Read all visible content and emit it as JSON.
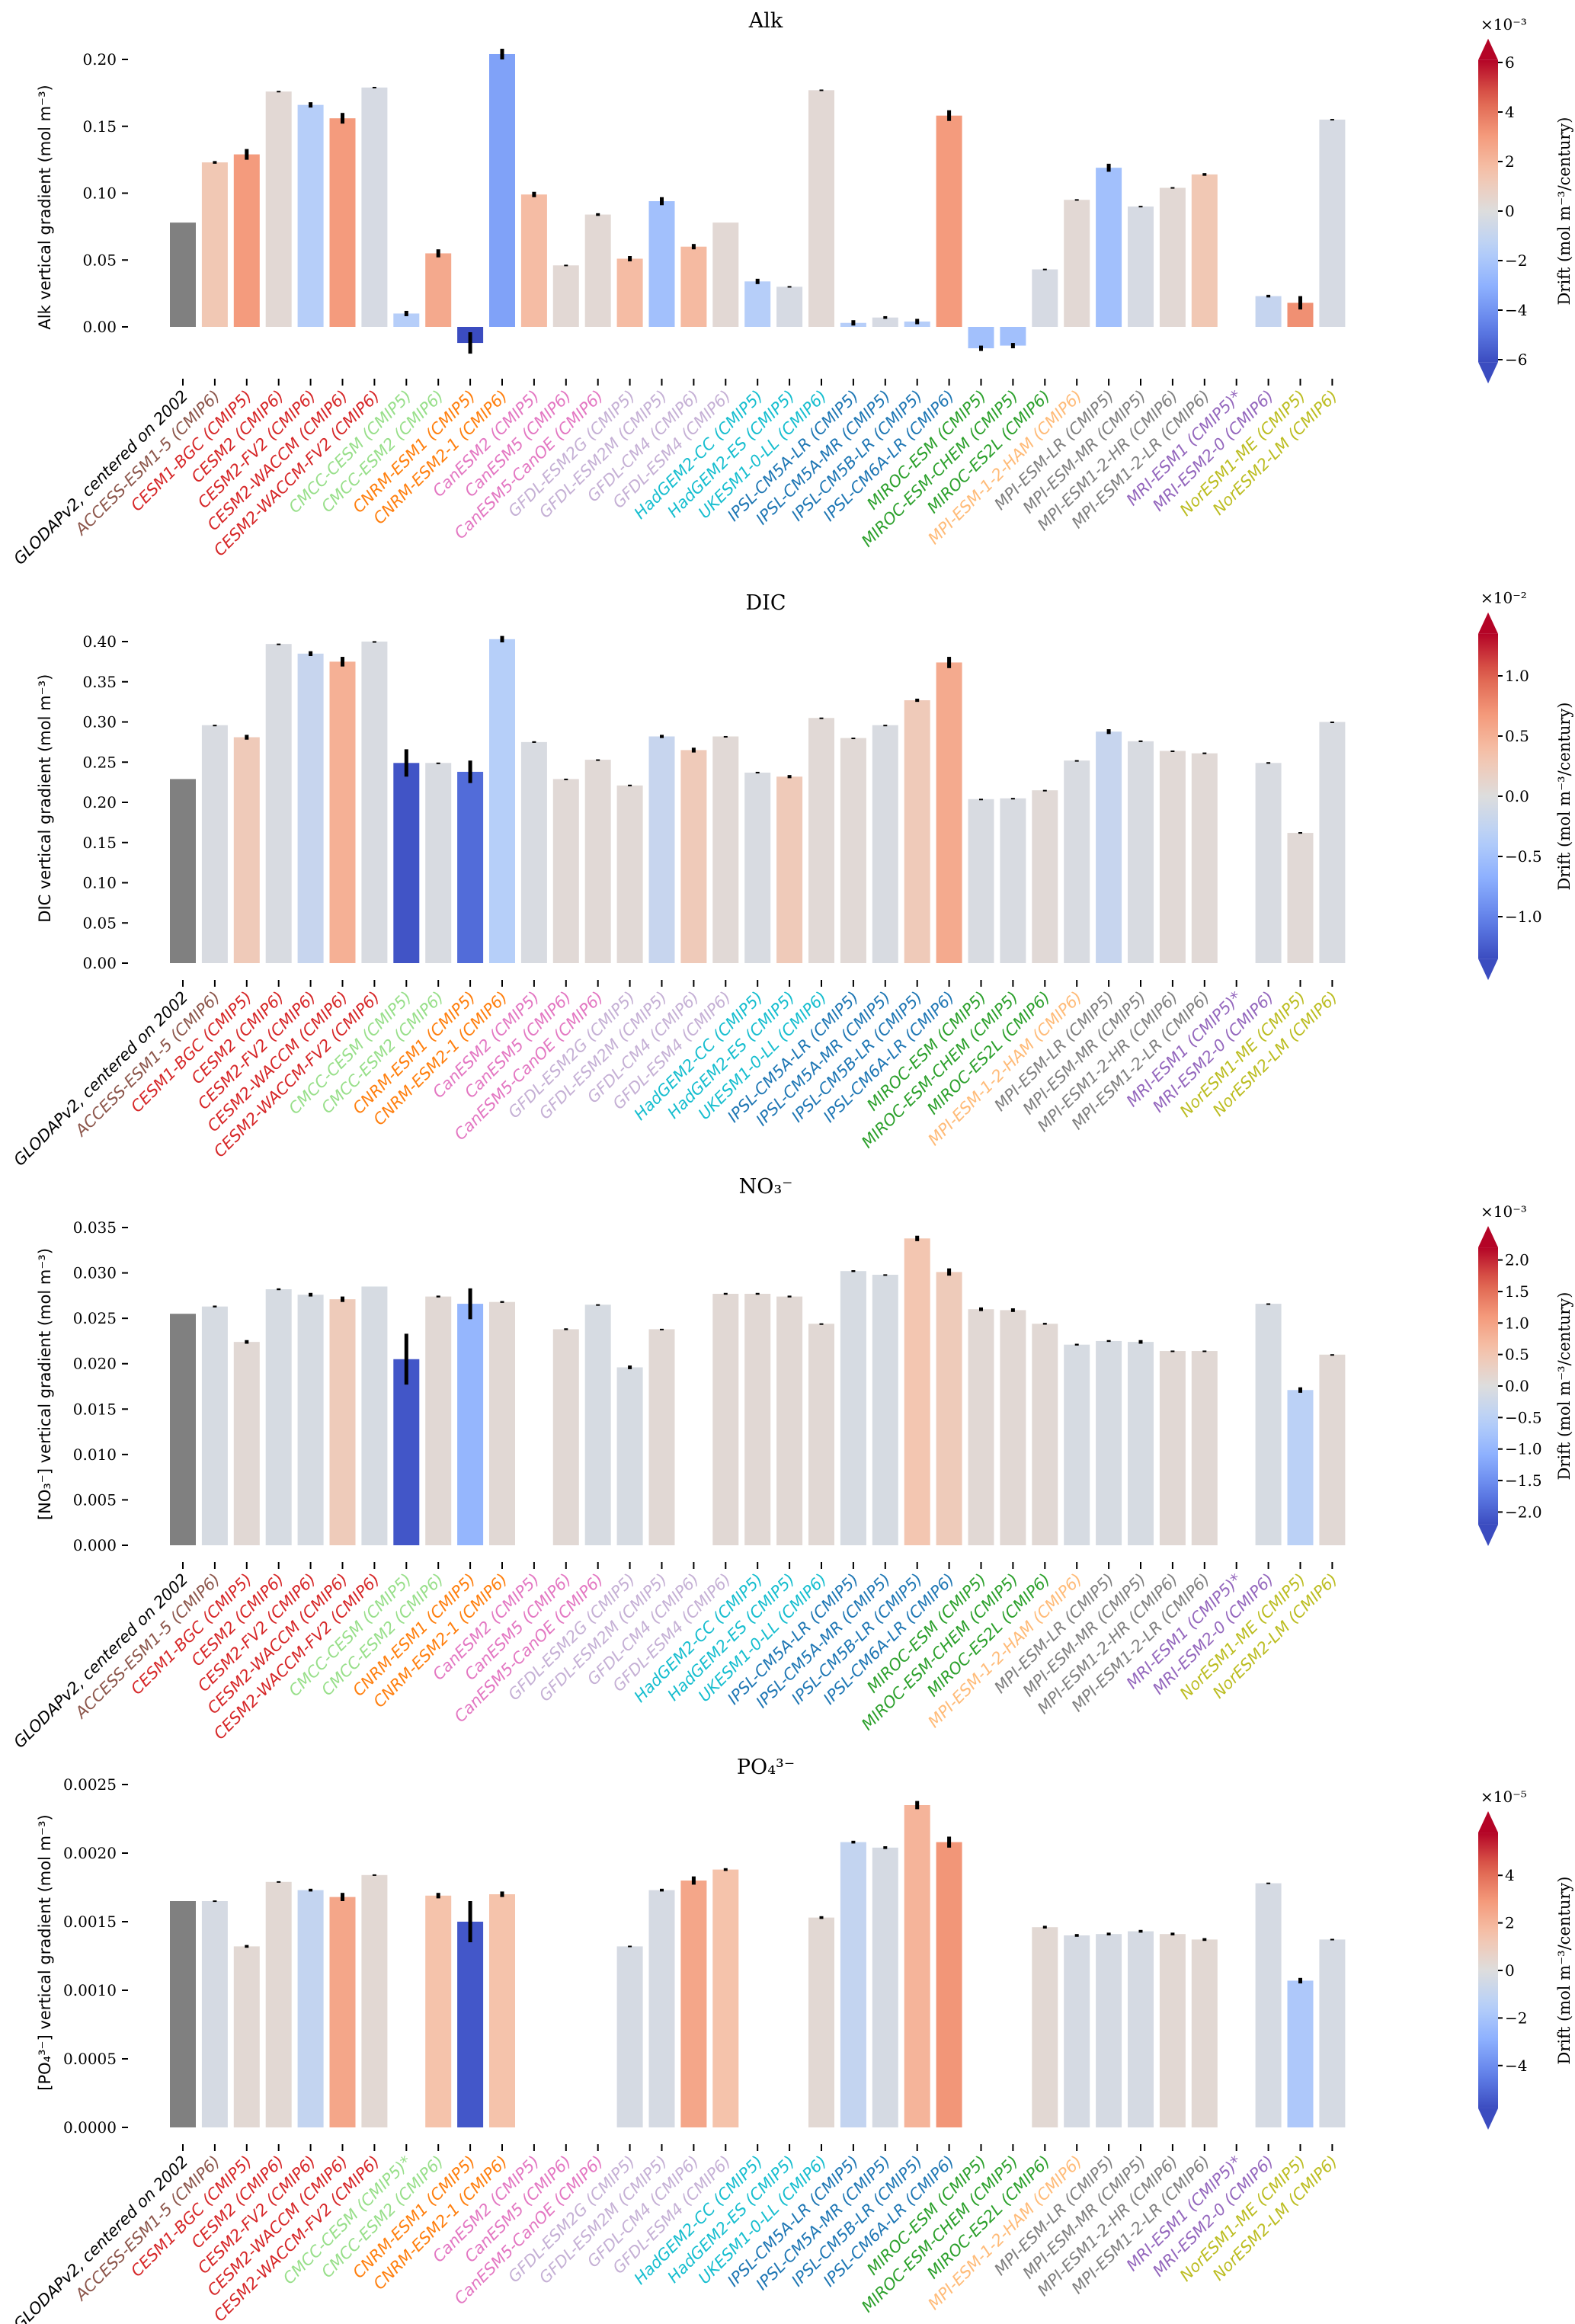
{
  "label_colors": [
    "#000000",
    "#8c564b",
    "#d62728",
    "#d62728",
    "#d62728",
    "#d62728",
    "#d62728",
    "#98df8a",
    "#98df8a",
    "#ff7f0e",
    "#ff7f0e",
    "#e377c2",
    "#e377c2",
    "#e377c2",
    "#c5b0d5",
    "#c5b0d5",
    "#c5b0d5",
    "#c5b0d5",
    "#17becf",
    "#17becf",
    "#17becf",
    "#1f77b4",
    "#1f77b4",
    "#1f77b4",
    "#1f77b4",
    "#2ca02c",
    "#2ca02c",
    "#2ca02c",
    "#ffbb78",
    "#7f7f7f",
    "#7f7f7f",
    "#7f7f7f",
    "#7f7f7f",
    "#9467bd",
    "#9467bd",
    "#bcbd22",
    "#bcbd22"
  ],
  "observation_color": "#808080",
  "colormap": "coolwarm",
  "chart_data": [
    {
      "type": "bar",
      "title": "Alk",
      "ylabel": "Alk vertical gradient (mol m⁻³)",
      "ylim": [
        -0.031,
        0.21
      ],
      "yticks": [
        "0.00",
        "0.05",
        "0.10",
        "0.15",
        "0.20"
      ],
      "ytick_values": [
        0,
        0.05,
        0.1,
        0.15,
        0.2
      ],
      "categories": [
        "GLODAPv2, centered on 2002",
        "ACCESS-ESM1-5 (CMIP6)",
        "CESM1-BGC (CMIP5)",
        "CESM2 (CMIP6)",
        "CESM2-FV2 (CMIP6)",
        "CESM2-WACCM (CMIP6)",
        "CESM2-WACCM-FV2 (CMIP6)",
        "CMCC-CESM (CMIP5)",
        "CMCC-ESM2 (CMIP6)",
        "CNRM-ESM1 (CMIP5)",
        "CNRM-ESM2-1 (CMIP6)",
        "CanESM2 (CMIP5)",
        "CanESM5 (CMIP6)",
        "CanESM5-CanOE (CMIP6)",
        "GFDL-ESM2G (CMIP5)",
        "GFDL-ESM2M (CMIP5)",
        "GFDL-CM4 (CMIP6)",
        "GFDL-ESM4 (CMIP6)",
        "HadGEM2-CC (CMIP5)",
        "HadGEM2-ES (CMIP5)",
        "UKESM1-0-LL (CMIP6)",
        "IPSL-CM5A-LR (CMIP5)",
        "IPSL-CM5A-MR (CMIP5)",
        "IPSL-CM5B-LR (CMIP5)",
        "IPSL-CM6A-LR (CMIP6)",
        "MIROC-ESM (CMIP5)",
        "MIROC-ESM-CHEM (CMIP5)",
        "MIROC-ES2L (CMIP6)",
        "MPI-ESM-1-2-HAM (CMIP6)",
        "MPI-ESM-LR (CMIP5)",
        "MPI-ESM-MR (CMIP5)",
        "MPI-ESM1-2-HR (CMIP6)",
        "MPI-ESM1-2-LR (CMIP6)",
        "MRI-ESM1 (CMIP5)*",
        "MRI-ESM2-0 (CMIP6)",
        "NorESM1-ME (CMIP5)",
        "NorESM2-LM (CMIP6)"
      ],
      "values": [
        0.078,
        0.123,
        0.129,
        0.176,
        0.166,
        0.156,
        0.179,
        0.01,
        0.055,
        -0.012,
        0.204,
        0.099,
        0.046,
        0.084,
        0.051,
        0.094,
        0.06,
        0.078,
        0.034,
        0.03,
        0.177,
        0.003,
        0.007,
        0.004,
        0.158,
        -0.016,
        -0.014,
        0.043,
        0.095,
        0.119,
        0.09,
        0.104,
        0.114,
        null,
        0.023,
        0.018,
        0.155
      ],
      "yerr": [
        0,
        0.001,
        0.004,
        0.0005,
        0.002,
        0.004,
        0.0005,
        0.002,
        0.003,
        0.008,
        0.004,
        0.002,
        0.0005,
        0.001,
        0.002,
        0.003,
        0.002,
        0,
        0.002,
        0.0005,
        0.0005,
        0.002,
        0.001,
        0.002,
        0.004,
        0.002,
        0.002,
        0.0005,
        0.0005,
        0.003,
        0.0005,
        0.0005,
        0.001,
        null,
        0.001,
        0.005,
        0.0005
      ],
      "drift": [
        null,
        1.3,
        3.0,
        0.3,
        -1.6,
        3.0,
        -0.3,
        -1.6,
        2.5,
        -6.5,
        -3.5,
        1.8,
        0.3,
        0.3,
        1.8,
        -2.3,
        1.9,
        0.3,
        -1.6,
        -0.3,
        0.3,
        -1.6,
        -0.3,
        -1.6,
        3.0,
        -2.3,
        -2.3,
        -0.3,
        0.3,
        -2.3,
        -0.3,
        0.3,
        1.3,
        null,
        -1.0,
        3.3,
        -0.3
      ],
      "colorbar": {
        "label": "Drift (mol m⁻³/century)",
        "multiplier": "×10⁻³",
        "vmin": -6.1,
        "vmax": 6.1,
        "ticks": [
          "−6",
          "−4",
          "−2",
          "0",
          "2",
          "4",
          "6"
        ],
        "tick_values": [
          -6,
          -4,
          -2,
          0,
          2,
          4,
          6
        ]
      }
    },
    {
      "type": "bar",
      "title": "DIC",
      "ylabel": "DIC vertical gradient (mol m⁻³)",
      "ylim": [
        0,
        0.41
      ],
      "yticks": [
        "0.00",
        "0.05",
        "0.10",
        "0.15",
        "0.20",
        "0.25",
        "0.30",
        "0.35",
        "0.40"
      ],
      "ytick_values": [
        0,
        0.05,
        0.1,
        0.15,
        0.2,
        0.25,
        0.3,
        0.35,
        0.4
      ],
      "categories": [
        "GLODAPv2, centered on 2002",
        "ACCESS-ESM1-5 (CMIP6)",
        "CESM1-BGC (CMIP5)",
        "CESM2 (CMIP6)",
        "CESM2-FV2 (CMIP6)",
        "CESM2-WACCM (CMIP6)",
        "CESM2-WACCM-FV2 (CMIP6)",
        "CMCC-CESM (CMIP5)",
        "CMCC-ESM2 (CMIP6)",
        "CNRM-ESM1 (CMIP5)",
        "CNRM-ESM2-1 (CMIP6)",
        "CanESM2 (CMIP5)",
        "CanESM5 (CMIP6)",
        "CanESM5-CanOE (CMIP6)",
        "GFDL-ESM2G (CMIP5)",
        "GFDL-ESM2M (CMIP5)",
        "GFDL-CM4 (CMIP6)",
        "GFDL-ESM4 (CMIP6)",
        "HadGEM2-CC (CMIP5)",
        "HadGEM2-ES (CMIP5)",
        "UKESM1-0-LL (CMIP6)",
        "IPSL-CM5A-LR (CMIP5)",
        "IPSL-CM5A-MR (CMIP5)",
        "IPSL-CM5B-LR (CMIP5)",
        "IPSL-CM6A-LR (CMIP6)",
        "MIROC-ESM (CMIP5)",
        "MIROC-ESM-CHEM (CMIP5)",
        "MIROC-ES2L (CMIP6)",
        "MPI-ESM-1-2-HAM (CMIP6)",
        "MPI-ESM-LR (CMIP5)",
        "MPI-ESM-MR (CMIP5)",
        "MPI-ESM1-2-HR (CMIP6)",
        "MPI-ESM1-2-LR (CMIP6)",
        "MRI-ESM1 (CMIP5)*",
        "MRI-ESM2-0 (CMIP6)",
        "NorESM1-ME (CMIP5)",
        "NorESM2-LM (CMIP6)"
      ],
      "values": [
        0.229,
        0.296,
        0.281,
        0.397,
        0.385,
        0.375,
        0.4,
        0.249,
        0.249,
        0.238,
        0.403,
        0.275,
        0.229,
        0.253,
        0.221,
        0.282,
        0.265,
        0.282,
        0.237,
        0.232,
        0.305,
        0.28,
        0.296,
        0.327,
        0.374,
        0.204,
        0.205,
        0.215,
        0.252,
        0.288,
        0.276,
        0.264,
        0.261,
        null,
        0.249,
        0.162,
        0.3
      ],
      "yerr": [
        0,
        0.0005,
        0.003,
        0.0005,
        0.003,
        0.006,
        0.0005,
        0.017,
        0.0005,
        0.014,
        0.004,
        0.001,
        0.0005,
        0.0005,
        0.001,
        0.002,
        0.003,
        0.0005,
        0.001,
        0.002,
        0.0005,
        0.0005,
        0.0005,
        0.002,
        0.007,
        0.0005,
        0.0005,
        0.0005,
        0.0005,
        0.003,
        0.001,
        0.0005,
        0.001,
        null,
        0.001,
        0.001,
        0.0005
      ],
      "drift": [
        null,
        -0.05,
        0.25,
        -0.05,
        -0.2,
        0.5,
        -0.05,
        -1.3,
        -0.05,
        -1.15,
        -0.35,
        -0.05,
        0.05,
        0.05,
        0.05,
        -0.2,
        0.25,
        0.05,
        -0.05,
        0.25,
        0.05,
        0.05,
        -0.05,
        0.25,
        0.55,
        -0.05,
        -0.05,
        0.05,
        -0.05,
        -0.2,
        -0.05,
        0.05,
        0.05,
        null,
        -0.05,
        0.05,
        -0.05
      ],
      "colorbar": {
        "label": "Drift (mol m⁻³/century)",
        "multiplier": "×10⁻²",
        "vmin": -1.35,
        "vmax": 1.35,
        "ticks": [
          "−1.0",
          "−0.5",
          "0.0",
          "0.5",
          "1.0"
        ],
        "tick_values": [
          -1.0,
          -0.5,
          0,
          0.5,
          1.0
        ]
      }
    },
    {
      "type": "bar",
      "title": "NO₃⁻",
      "ylabel": "[NO₃⁻] vertical gradient (mol m⁻³)",
      "ylim": [
        0,
        0.0355
      ],
      "yticks": [
        "0.000",
        "0.005",
        "0.010",
        "0.015",
        "0.020",
        "0.025",
        "0.030",
        "0.035"
      ],
      "ytick_values": [
        0,
        0.005,
        0.01,
        0.015,
        0.02,
        0.025,
        0.03,
        0.035
      ],
      "categories": [
        "GLODAPv2, centered on 2002",
        "ACCESS-ESM1-5 (CMIP6)",
        "CESM1-BGC (CMIP5)",
        "CESM2 (CMIP6)",
        "CESM2-FV2 (CMIP6)",
        "CESM2-WACCM (CMIP6)",
        "CESM2-WACCM-FV2 (CMIP6)",
        "CMCC-CESM (CMIP5)",
        "CMCC-ESM2 (CMIP6)",
        "CNRM-ESM1 (CMIP5)",
        "CNRM-ESM2-1 (CMIP6)",
        "CanESM2 (CMIP5)",
        "CanESM5 (CMIP6)",
        "CanESM5-CanOE (CMIP6)",
        "GFDL-ESM2G (CMIP5)",
        "GFDL-ESM2M (CMIP5)",
        "GFDL-CM4 (CMIP6)",
        "GFDL-ESM4 (CMIP6)",
        "HadGEM2-CC (CMIP5)",
        "HadGEM2-ES (CMIP5)",
        "UKESM1-0-LL (CMIP6)",
        "IPSL-CM5A-LR (CMIP5)",
        "IPSL-CM5A-MR (CMIP5)",
        "IPSL-CM5B-LR (CMIP5)",
        "IPSL-CM6A-LR (CMIP6)",
        "MIROC-ESM (CMIP5)",
        "MIROC-ESM-CHEM (CMIP5)",
        "MIROC-ES2L (CMIP6)",
        "MPI-ESM-1-2-HAM (CMIP6)",
        "MPI-ESM-LR (CMIP5)",
        "MPI-ESM-MR (CMIP5)",
        "MPI-ESM1-2-HR (CMIP6)",
        "MPI-ESM1-2-LR (CMIP6)",
        "MRI-ESM1 (CMIP5)*",
        "MRI-ESM2-0 (CMIP6)",
        "NorESM1-ME (CMIP5)",
        "NorESM2-LM (CMIP6)"
      ],
      "values": [
        0.0255,
        0.0263,
        0.0224,
        0.0282,
        0.0276,
        0.0271,
        0.0285,
        0.0205,
        0.0274,
        0.0266,
        0.0268,
        null,
        0.0238,
        0.0265,
        0.0196,
        0.0238,
        null,
        0.0277,
        0.0277,
        0.0274,
        0.0244,
        0.0302,
        0.0298,
        0.0338,
        0.0301,
        0.026,
        0.0259,
        0.0244,
        0.0221,
        0.0225,
        0.0224,
        0.0214,
        0.0214,
        null,
        0.0266,
        0.0171,
        0.021
      ],
      "yerr": [
        0,
        0.0001,
        0.0002,
        0.0001,
        0.0002,
        0.0003,
        0,
        0.0028,
        0.0001,
        0.0017,
        0.0001,
        null,
        0.0001,
        5e-05,
        0.0002,
        5e-05,
        null,
        0.0001,
        0.0001,
        0.0001,
        5e-05,
        0.0001,
        5e-05,
        0.0003,
        0.0004,
        0.0002,
        0.0002,
        0.0001,
        0.0001,
        0.0001,
        0.0002,
        5e-05,
        5e-05,
        null,
        5e-05,
        0.0003,
        5e-05
      ],
      "drift": [
        null,
        -0.1,
        0.1,
        -0.1,
        -0.1,
        0.4,
        -0.1,
        -2.1,
        0.1,
        -1.0,
        0.1,
        null,
        0.1,
        -0.1,
        -0.1,
        0.1,
        null,
        0.1,
        0.1,
        0.1,
        0.1,
        -0.1,
        -0.1,
        0.5,
        0.4,
        0.1,
        0.1,
        0.1,
        -0.1,
        -0.1,
        -0.1,
        0.1,
        0.1,
        null,
        -0.1,
        -0.5,
        0.1
      ],
      "colorbar": {
        "label": "Drift (mol m⁻³/century)",
        "multiplier": "×10⁻³",
        "vmin": -2.2,
        "vmax": 2.2,
        "ticks": [
          "−2.0",
          "−1.5",
          "−1.0",
          "−0.5",
          "0.0",
          "0.5",
          "1.0",
          "1.5",
          "2.0"
        ],
        "tick_values": [
          -2.0,
          -1.5,
          -1.0,
          -0.5,
          0,
          0.5,
          1.0,
          1.5,
          2.0
        ]
      }
    },
    {
      "type": "bar",
      "title": "PO₄³⁻",
      "ylabel": "[PO₄³⁻] vertical gradient (mol m⁻³)",
      "ylim": [
        0,
        0.00255
      ],
      "yticks": [
        "0.0000",
        "0.0005",
        "0.0010",
        "0.0015",
        "0.0020",
        "0.0025"
      ],
      "ytick_values": [
        0,
        0.0005,
        0.001,
        0.0015,
        0.002,
        0.0025
      ],
      "categories": [
        "GLODAPv2, centered on 2002",
        "ACCESS-ESM1-5 (CMIP6)",
        "CESM1-BGC (CMIP5)",
        "CESM2 (CMIP6)",
        "CESM2-FV2 (CMIP6)",
        "CESM2-WACCM (CMIP6)",
        "CESM2-WACCM-FV2 (CMIP6)",
        "CMCC-CESM (CMIP5)*",
        "CMCC-ESM2 (CMIP6)",
        "CNRM-ESM1 (CMIP5)",
        "CNRM-ESM2-1 (CMIP6)",
        "CanESM2 (CMIP5)",
        "CanESM5 (CMIP6)",
        "CanESM5-CanOE (CMIP6)",
        "GFDL-ESM2G (CMIP5)",
        "GFDL-ESM2M (CMIP5)",
        "GFDL-CM4 (CMIP6)",
        "GFDL-ESM4 (CMIP6)",
        "HadGEM2-CC (CMIP5)",
        "HadGEM2-ES (CMIP5)",
        "UKESM1-0-LL (CMIP6)",
        "IPSL-CM5A-LR (CMIP5)",
        "IPSL-CM5A-MR (CMIP5)",
        "IPSL-CM5B-LR (CMIP5)",
        "IPSL-CM6A-LR (CMIP6)",
        "MIROC-ESM (CMIP5)",
        "MIROC-ESM-CHEM (CMIP5)",
        "MIROC-ES2L (CMIP6)",
        "MPI-ESM-1-2-HAM (CMIP6)",
        "MPI-ESM-LR (CMIP5)",
        "MPI-ESM-MR (CMIP5)",
        "MPI-ESM1-2-HR (CMIP6)",
        "MPI-ESM1-2-LR (CMIP6)",
        "MRI-ESM1 (CMIP5)*",
        "MRI-ESM2-0 (CMIP6)",
        "NorESM1-ME (CMIP5)",
        "NorESM2-LM (CMIP6)"
      ],
      "values": [
        0.00165,
        0.00165,
        0.00132,
        0.00179,
        0.00173,
        0.00168,
        0.00184,
        null,
        0.00169,
        0.0015,
        0.0017,
        null,
        null,
        null,
        0.00132,
        0.00173,
        0.0018,
        0.00188,
        null,
        null,
        0.00153,
        0.00208,
        0.00204,
        0.00235,
        0.00208,
        null,
        null,
        0.00146,
        0.0014,
        0.00141,
        0.00143,
        0.00141,
        0.00137,
        null,
        0.00178,
        0.00107,
        0.00137
      ],
      "yerr": [
        0,
        5e-06,
        1e-05,
        5e-06,
        1e-05,
        3e-05,
        5e-06,
        null,
        2e-05,
        0.00015,
        2e-05,
        null,
        null,
        null,
        5e-06,
        1e-05,
        3e-05,
        1e-05,
        null,
        null,
        1e-05,
        1e-05,
        1e-05,
        3e-05,
        4e-05,
        null,
        null,
        1e-05,
        1e-05,
        1e-05,
        1e-05,
        1e-05,
        1e-05,
        null,
        5e-06,
        2e-05,
        5e-06
      ],
      "drift": [
        null,
        -0.3,
        0.3,
        0.3,
        -1.0,
        2.5,
        0.3,
        null,
        1.5,
        -5.5,
        1.5,
        null,
        null,
        null,
        -0.3,
        -0.3,
        2.5,
        1.5,
        null,
        null,
        0.3,
        -1.0,
        -0.3,
        2.0,
        3.0,
        null,
        null,
        0.3,
        -0.3,
        -0.3,
        -0.3,
        0.3,
        0.3,
        null,
        -0.3,
        -1.8,
        -0.3
      ],
      "colorbar": {
        "label": "Drift (mol m⁻³/century)",
        "multiplier": "×10⁻⁵",
        "vmin": -5.8,
        "vmax": 5.8,
        "ticks": [
          "−4",
          "−2",
          "0",
          "2",
          "4"
        ],
        "tick_values": [
          -4,
          -2,
          0,
          2,
          4
        ]
      }
    }
  ]
}
